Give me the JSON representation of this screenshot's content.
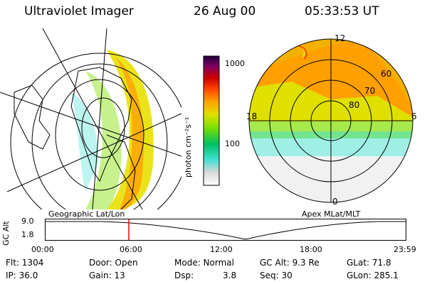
{
  "header": {
    "instrument": "Ultraviolet Imager",
    "date": "26 Aug 00",
    "time": "05:33:53 UT"
  },
  "left_panel": {
    "label": "Geographic Lat/Lon"
  },
  "right_panel": {
    "label": "Apex MLat/MLT",
    "mlt_labels": {
      "top": "12",
      "left": "18",
      "right": "6",
      "bottom": "0"
    },
    "lat_labels": [
      "60",
      "70",
      "80"
    ]
  },
  "colorbar": {
    "unit_label": "photon cm⁻²s⁻¹",
    "ticks": [
      "1000",
      "100"
    ]
  },
  "timeline": {
    "ylabel": "GC Alt",
    "ytick_top": "9.0",
    "ytick_bottom": "1.8",
    "xticks": [
      "00:00",
      "06:00",
      "12:00",
      "18:00",
      "23:59"
    ],
    "current_time": "05:33:53"
  },
  "info": {
    "flt": "Flt: 1304",
    "ip": "IP: 36.0",
    "door": "Door: Open",
    "gain": "Gain: 13",
    "mode": "Mode: Normal",
    "dsp_label": "Dsp:",
    "dsp_value": "3.8",
    "gc_alt": "GC Alt: 9.3 Re",
    "seq": "Seq: 30",
    "glat": "GLat:  71.8",
    "glon": "GLon: 285.1"
  },
  "colors": {
    "marker": "#ff0000",
    "scale": [
      "#ffffff",
      "#d8d8d8",
      "#40e0d0",
      "#00c060",
      "#80e000",
      "#e0e000",
      "#ffa000",
      "#ff4000",
      "#d00000",
      "#800060",
      "#200040"
    ]
  }
}
